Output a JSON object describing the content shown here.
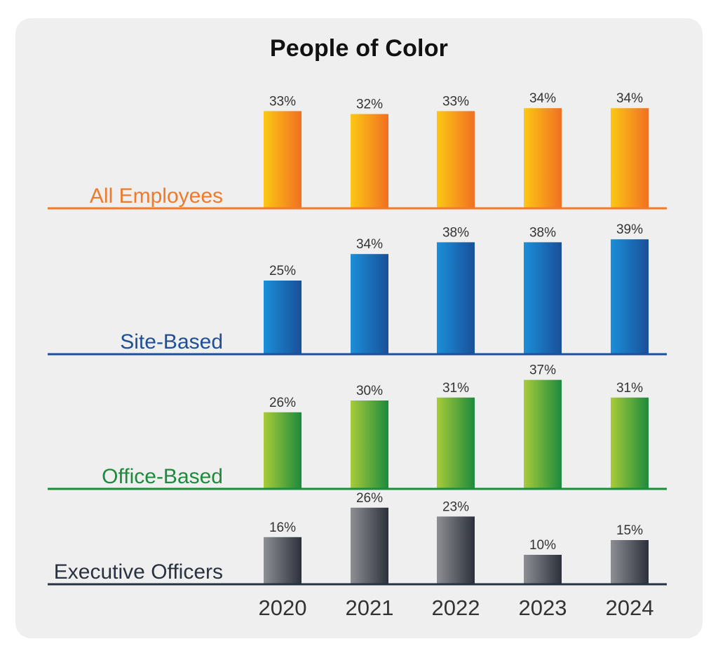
{
  "chart_data": {
    "type": "bar",
    "title": "People of Color",
    "categories": [
      "2020",
      "2021",
      "2022",
      "2023",
      "2024"
    ],
    "unit": "%",
    "panels": [
      {
        "name": "All Employees",
        "values": [
          33,
          32,
          33,
          34,
          34
        ],
        "label_color": "#f07a2a",
        "line_color": "#f07a2a",
        "gradient": [
          "#fbc813",
          "#f26f21"
        ]
      },
      {
        "name": "Site-Based",
        "values": [
          25,
          34,
          38,
          38,
          39
        ],
        "label_color": "#1f4f94",
        "line_color": "#1f4f94",
        "gradient": [
          "#1b8fd8",
          "#1a4f99"
        ]
      },
      {
        "name": "Office-Based",
        "values": [
          26,
          30,
          31,
          37,
          31
        ],
        "label_color": "#1f8a3e",
        "line_color": "#1f8a3e",
        "gradient": [
          "#a8cc3a",
          "#1c8a3c"
        ]
      },
      {
        "name": "Executive Officers",
        "values": [
          16,
          26,
          23,
          10,
          15
        ],
        "label_color": "#2a3140",
        "line_color": "#2a3140",
        "gradient": [
          "#8d8f94",
          "#2c303a"
        ]
      }
    ],
    "title_rule_gradient": [
      "#f26f21",
      "#fbc813",
      "#a8cc3a",
      "#1c8a3c",
      "#1b8fd8",
      "#1f4f94"
    ]
  }
}
